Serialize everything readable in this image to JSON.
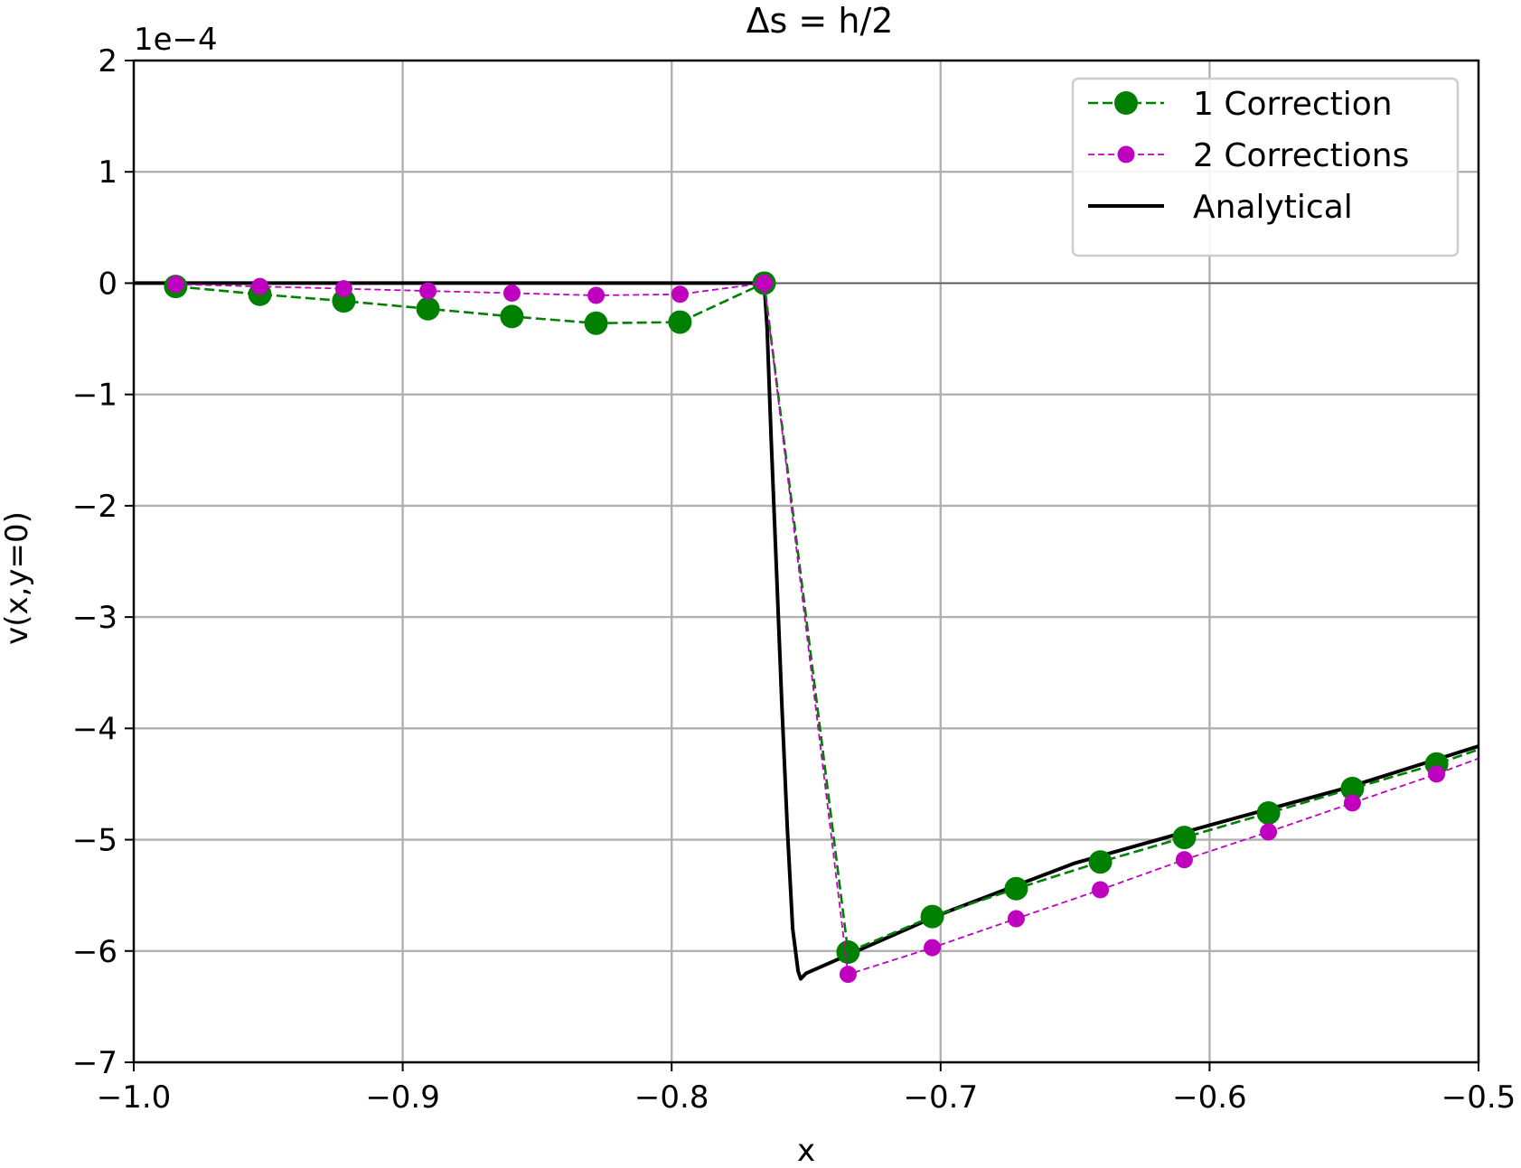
{
  "chart_data": {
    "type": "line",
    "title": "Δs = h/2",
    "xlabel": "x",
    "ylabel": "v(x,y=0)",
    "offset_text": "1e−4",
    "xlim": [
      -1.0,
      -0.5
    ],
    "ylim": [
      -7,
      2
    ],
    "x_ticks": [
      -1.0,
      -0.9,
      -0.8,
      -0.7,
      -0.6,
      -0.5
    ],
    "x_tick_labels": [
      "−1.0",
      "−0.9",
      "−0.8",
      "−0.7",
      "−0.6",
      "−0.5"
    ],
    "y_ticks": [
      2,
      1,
      0,
      -1,
      -2,
      -3,
      -4,
      -5,
      -6,
      -7
    ],
    "y_tick_labels": [
      "2",
      "1",
      "0",
      "−1",
      "−2",
      "−3",
      "−4",
      "−5",
      "−6",
      "−7"
    ],
    "grid": true,
    "legend_position": "top-right",
    "series": [
      {
        "name": "1 Correction",
        "color": "#008000",
        "line_style": "dashed",
        "marker": "large-circle",
        "x": [
          -0.9844,
          -0.9531,
          -0.9219,
          -0.8906,
          -0.8594,
          -0.8281,
          -0.7969,
          -0.7656,
          -0.7344,
          -0.7031,
          -0.6719,
          -0.6406,
          -0.6094,
          -0.5781,
          -0.5469,
          -0.5156,
          -0.5
        ],
        "y": [
          -0.03,
          -0.1,
          -0.16,
          -0.23,
          -0.3,
          -0.36,
          -0.35,
          0.0,
          -6.01,
          -5.69,
          -5.44,
          -5.2,
          -4.98,
          -4.76,
          -4.54,
          -4.32,
          -4.19
        ]
      },
      {
        "name": "2 Corrections",
        "color": "#bf00bf",
        "line_style": "dashed",
        "marker": "small-circle",
        "x": [
          -0.9844,
          -0.9531,
          -0.9219,
          -0.8906,
          -0.8594,
          -0.8281,
          -0.7969,
          -0.7656,
          -0.7344,
          -0.7031,
          -0.6719,
          -0.6406,
          -0.6094,
          -0.5781,
          -0.5469,
          -0.5156,
          -0.5
        ],
        "y": [
          -0.01,
          -0.03,
          -0.05,
          -0.07,
          -0.09,
          -0.11,
          -0.1,
          0.0,
          -6.21,
          -5.97,
          -5.71,
          -5.45,
          -5.18,
          -4.93,
          -4.67,
          -4.41,
          -4.27
        ]
      },
      {
        "name": "Analytical",
        "color": "#000000",
        "line_style": "solid",
        "marker": "none",
        "x": [
          -1.0,
          -0.7656,
          -0.7645,
          -0.763,
          -0.761,
          -0.759,
          -0.757,
          -0.755,
          -0.753,
          -0.752,
          -0.75,
          -0.7,
          -0.65,
          -0.6,
          -0.55,
          -0.5
        ],
        "y": [
          0.0,
          0.0,
          -0.4,
          -1.4,
          -2.6,
          -3.8,
          -4.9,
          -5.8,
          -6.18,
          -6.25,
          -6.2,
          -5.67,
          -5.21,
          -4.87,
          -4.54,
          -4.16
        ]
      }
    ]
  }
}
